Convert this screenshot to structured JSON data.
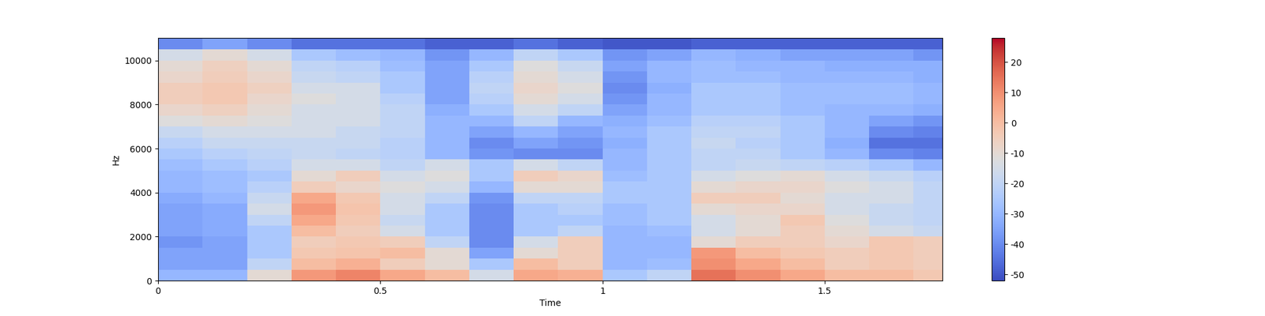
{
  "chart_data": {
    "type": "heatmap",
    "xlabel": "Time",
    "ylabel": "Hz",
    "x_edges": [
      0,
      0.1,
      0.2,
      0.3,
      0.4,
      0.5,
      0.6,
      0.7,
      0.8,
      0.9,
      1.0,
      1.1,
      1.2,
      1.3,
      1.4,
      1.5,
      1.6,
      1.7,
      1.765
    ],
    "y_edges": [
      0,
      500,
      1000,
      1500,
      2000,
      2500,
      3000,
      3500,
      4000,
      4500,
      5000,
      5500,
      6000,
      6500,
      7000,
      7500,
      8000,
      8500,
      9000,
      9500,
      10000,
      10500,
      11025
    ],
    "cells_by_time": [
      [
        -30,
        -35,
        -35,
        -38,
        -35,
        -35,
        -35,
        -33,
        -30,
        -30,
        -28,
        -25,
        -22,
        -18,
        -12,
        -8,
        -5,
        -5,
        -8,
        -10,
        -15,
        -40
      ],
      [
        -30,
        -35,
        -35,
        -35,
        -33,
        -33,
        -33,
        -30,
        -28,
        -28,
        -25,
        -22,
        -18,
        -15,
        -10,
        -6,
        -3,
        -3,
        -5,
        -6,
        -10,
        -35
      ],
      [
        -10,
        -20,
        -25,
        -25,
        -25,
        -20,
        -15,
        -18,
        -22,
        -25,
        -22,
        -20,
        -18,
        -15,
        -12,
        -10,
        -8,
        -6,
        -8,
        -10,
        -15,
        -40
      ],
      [
        8,
        0,
        -3,
        -5,
        0,
        5,
        8,
        5,
        -5,
        -10,
        -15,
        -18,
        -18,
        -15,
        -15,
        -15,
        -12,
        -15,
        -18,
        -20,
        -25,
        -45
      ],
      [
        12,
        3,
        -2,
        -3,
        -5,
        -3,
        -2,
        -3,
        -8,
        -5,
        -15,
        -20,
        -18,
        -18,
        -15,
        -15,
        -15,
        -15,
        -20,
        -22,
        -28,
        -45
      ],
      [
        5,
        -5,
        0,
        -5,
        -15,
        -18,
        -15,
        -15,
        -12,
        -15,
        -20,
        -22,
        -22,
        -20,
        -20,
        -20,
        -22,
        -25,
        -25,
        -28,
        -30,
        -45
      ],
      [
        0,
        -10,
        -10,
        -20,
        -25,
        -25,
        -25,
        -20,
        -15,
        -12,
        -15,
        -30,
        -30,
        -30,
        -30,
        -32,
        -35,
        -35,
        -35,
        -35,
        -38,
        -48
      ],
      [
        -15,
        -25,
        -35,
        -40,
        -40,
        -40,
        -40,
        -38,
        -30,
        -25,
        -25,
        -38,
        -40,
        -35,
        -30,
        -25,
        -22,
        -20,
        -22,
        -25,
        -30,
        -48
      ],
      [
        5,
        0,
        -10,
        -15,
        -25,
        -25,
        -25,
        -20,
        -10,
        -5,
        -15,
        -40,
        -35,
        -30,
        -20,
        -15,
        -10,
        -8,
        -10,
        -12,
        -20,
        -45
      ],
      [
        3,
        -5,
        -5,
        -5,
        -20,
        -25,
        -22,
        -20,
        -10,
        -8,
        -20,
        -40,
        -38,
        -35,
        -30,
        -20,
        -15,
        -12,
        -15,
        -18,
        -25,
        -48
      ],
      [
        -25,
        -30,
        -30,
        -30,
        -30,
        -28,
        -28,
        -25,
        -25,
        -28,
        -30,
        -30,
        -32,
        -30,
        -32,
        -35,
        -38,
        -40,
        -38,
        -35,
        -38,
        -50
      ],
      [
        -20,
        -28,
        -30,
        -30,
        -28,
        -25,
        -25,
        -25,
        -25,
        -25,
        -25,
        -25,
        -25,
        -25,
        -28,
        -30,
        -30,
        -32,
        -30,
        -30,
        -35,
        -50
      ],
      [
        15,
        10,
        8,
        -10,
        -15,
        -15,
        -10,
        -5,
        -10,
        -15,
        -20,
        -20,
        -18,
        -20,
        -22,
        -25,
        -25,
        -25,
        -28,
        -28,
        -30,
        -48
      ],
      [
        10,
        5,
        0,
        -5,
        -10,
        -10,
        -8,
        -5,
        -8,
        -12,
        -18,
        -20,
        -22,
        -20,
        -22,
        -25,
        -25,
        -25,
        -28,
        -30,
        -32,
        -48
      ],
      [
        5,
        0,
        -3,
        -5,
        -5,
        -3,
        -8,
        -10,
        -8,
        -10,
        -20,
        -25,
        -25,
        -25,
        -25,
        -28,
        -28,
        -28,
        -30,
        -30,
        -35,
        -48
      ],
      [
        0,
        -5,
        -5,
        -8,
        -10,
        -12,
        -15,
        -15,
        -12,
        -15,
        -22,
        -30,
        -32,
        -30,
        -30,
        -30,
        -28,
        -28,
        -30,
        -32,
        -35,
        -48
      ],
      [
        0,
        -3,
        -3,
        -3,
        -15,
        -18,
        -18,
        -15,
        -15,
        -18,
        -25,
        -40,
        -45,
        -40,
        -35,
        -30,
        -28,
        -28,
        -30,
        -32,
        -35,
        -48
      ],
      [
        -3,
        -5,
        -5,
        -5,
        -18,
        -20,
        -20,
        -20,
        -20,
        -22,
        -30,
        -42,
        -45,
        -42,
        -38,
        -32,
        -30,
        -30,
        -32,
        -32,
        -38,
        -48
      ]
    ],
    "colorbar_range": [
      -52,
      28
    ],
    "colorbar_ticks": [
      -50,
      -40,
      -30,
      -20,
      -10,
      0,
      10,
      20
    ],
    "xlim": [
      0,
      1.765
    ],
    "xticks": [
      0,
      0.5,
      1,
      1.5
    ],
    "ylim": [
      0,
      11025
    ],
    "yticks": [
      0,
      2000,
      4000,
      6000,
      8000,
      10000
    ]
  }
}
